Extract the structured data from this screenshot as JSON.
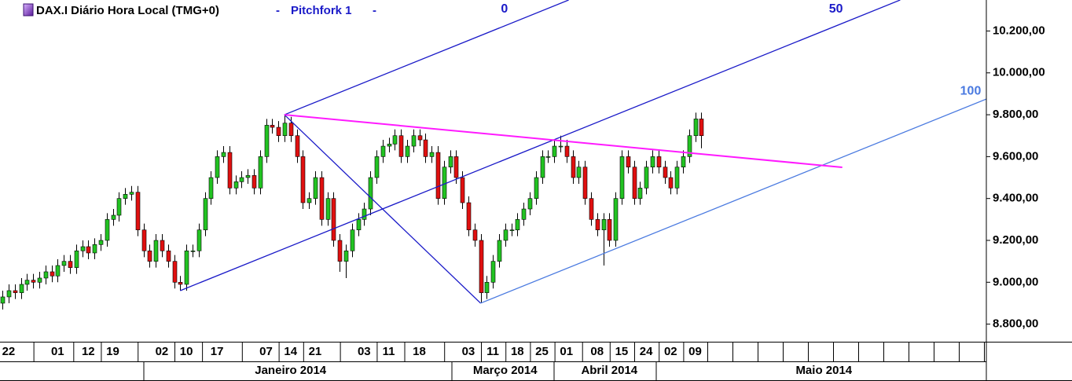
{
  "chart_data": {
    "type": "candlestick",
    "title": "DAX.I Diário Hora Local (TMG+0)",
    "separator": "-",
    "up_color": "#22c322",
    "down_color": "#e01010",
    "open": [
      8900,
      8930,
      8960,
      8950,
      8990,
      9010,
      9000,
      9020,
      9050,
      9030,
      9080,
      9100,
      9070,
      9150,
      9170,
      9140,
      9180,
      9200,
      9300,
      9320,
      9400,
      9420,
      9430,
      9250,
      9150,
      9100,
      9200,
      9150,
      9100,
      9000,
      8990,
      9150,
      9150,
      9250,
      9400,
      9500,
      9600,
      9620,
      9450,
      9480,
      9500,
      9510,
      9450,
      9600,
      9750,
      9740,
      9700,
      9760,
      9700,
      9600,
      9380,
      9400,
      9500,
      9300,
      9400,
      9200,
      9100,
      9150,
      9250,
      9300,
      9350,
      9500,
      9600,
      9650,
      9660,
      9700,
      9600,
      9650,
      9700,
      9680,
      9600,
      9620,
      9400,
      9550,
      9600,
      9500,
      9380,
      9250,
      9200,
      8950,
      9000,
      9100,
      9200,
      9250,
      9250,
      9300,
      9350,
      9400,
      9500,
      9600,
      9600,
      9650,
      9650,
      9600,
      9500,
      9550,
      9400,
      9300,
      9250,
      9300,
      9200,
      9400,
      9600,
      9550,
      9400,
      9450,
      9550,
      9600,
      9550,
      9500,
      9450,
      9550,
      9600,
      9700,
      9780
    ],
    "high": [
      8960,
      8990,
      8990,
      9020,
      9040,
      9040,
      9050,
      9080,
      9080,
      9110,
      9130,
      9130,
      9180,
      9200,
      9200,
      9210,
      9230,
      9330,
      9350,
      9430,
      9450,
      9460,
      9460,
      9280,
      9180,
      9230,
      9230,
      9180,
      9130,
      9030,
      9180,
      9180,
      9280,
      9430,
      9530,
      9630,
      9650,
      9650,
      9510,
      9530,
      9540,
      9540,
      9630,
      9780,
      9780,
      9770,
      9800,
      9790,
      9730,
      9630,
      9430,
      9530,
      9530,
      9430,
      9430,
      9230,
      9180,
      9280,
      9330,
      9380,
      9530,
      9630,
      9680,
      9690,
      9730,
      9730,
      9680,
      9730,
      9730,
      9710,
      9650,
      9650,
      9580,
      9630,
      9630,
      9530,
      9410,
      9280,
      9230,
      9030,
      9130,
      9230,
      9280,
      9280,
      9330,
      9380,
      9430,
      9530,
      9630,
      9630,
      9680,
      9700,
      9680,
      9630,
      9580,
      9580,
      9430,
      9330,
      9330,
      9330,
      9430,
      9630,
      9630,
      9580,
      9480,
      9580,
      9630,
      9630,
      9580,
      9530,
      9580,
      9630,
      9730,
      9810,
      9810
    ],
    "low": [
      8870,
      8900,
      8920,
      8920,
      8960,
      8970,
      8970,
      8990,
      9000,
      9000,
      9050,
      9040,
      9040,
      9120,
      9110,
      9110,
      9150,
      9170,
      9270,
      9290,
      9370,
      9390,
      9220,
      9120,
      9070,
      9070,
      9120,
      9070,
      8970,
      8960,
      8960,
      9120,
      9120,
      9220,
      9370,
      9470,
      9570,
      9420,
      9420,
      9450,
      9470,
      9420,
      9420,
      9570,
      9710,
      9670,
      9670,
      9670,
      9570,
      9350,
      9350,
      9370,
      9270,
      9270,
      9170,
      9050,
      9020,
      9120,
      9220,
      9270,
      9320,
      9470,
      9570,
      9620,
      9630,
      9570,
      9570,
      9620,
      9650,
      9570,
      9570,
      9370,
      9370,
      9520,
      9470,
      9350,
      9220,
      9170,
      8900,
      8920,
      8970,
      9070,
      9170,
      9220,
      9220,
      9270,
      9320,
      9370,
      9470,
      9570,
      9570,
      9620,
      9570,
      9470,
      9470,
      9370,
      9270,
      9220,
      9080,
      9170,
      9170,
      9370,
      9520,
      9370,
      9370,
      9420,
      9520,
      9520,
      9470,
      9420,
      9420,
      9520,
      9570,
      9670,
      9640
    ],
    "close": [
      8930,
      8960,
      8950,
      8990,
      9010,
      9000,
      9020,
      9050,
      9030,
      9080,
      9100,
      9070,
      9150,
      9170,
      9140,
      9180,
      9200,
      9300,
      9320,
      9400,
      9420,
      9430,
      9250,
      9150,
      9100,
      9200,
      9150,
      9100,
      9000,
      8990,
      9150,
      9150,
      9250,
      9400,
      9500,
      9600,
      9620,
      9450,
      9480,
      9500,
      9510,
      9450,
      9600,
      9750,
      9740,
      9700,
      9760,
      9700,
      9600,
      9380,
      9400,
      9500,
      9300,
      9400,
      9200,
      9100,
      9150,
      9250,
      9300,
      9350,
      9500,
      9600,
      9650,
      9660,
      9700,
      9600,
      9650,
      9700,
      9680,
      9600,
      9620,
      9400,
      9550,
      9600,
      9500,
      9380,
      9250,
      9200,
      8950,
      9000,
      9100,
      9200,
      9250,
      9250,
      9300,
      9350,
      9400,
      9500,
      9600,
      9600,
      9650,
      9650,
      9600,
      9500,
      9550,
      9400,
      9300,
      9250,
      9300,
      9200,
      9400,
      9600,
      9550,
      9400,
      9450,
      9550,
      9600,
      9550,
      9500,
      9450,
      9550,
      9600,
      9700,
      9780,
      9700
    ],
    "xlim": [
      -0.4,
      160.5
    ],
    "ylim": [
      8716,
      10348
    ],
    "yticks": [
      {
        "value": 10200,
        "label": "10.200,00"
      },
      {
        "value": 10000,
        "label": "10.000,00"
      },
      {
        "value": 9800,
        "label": "9.800,00"
      },
      {
        "value": 9600,
        "label": "9.600,00"
      },
      {
        "value": 9400,
        "label": "9.400,00"
      },
      {
        "value": 9200,
        "label": "9.200,00"
      },
      {
        "value": 9000,
        "label": "9.000,00"
      },
      {
        "value": 8800,
        "label": "8.800,00"
      }
    ],
    "xticks": [
      {
        "value": 1,
        "label": "22"
      },
      {
        "value": 9,
        "label": "01"
      },
      {
        "value": 14,
        "label": "12"
      },
      {
        "value": 18,
        "label": "19"
      },
      {
        "value": 26,
        "label": "02"
      },
      {
        "value": 30,
        "label": "10"
      },
      {
        "value": 35,
        "label": "17"
      },
      {
        "value": 43,
        "label": "07"
      },
      {
        "value": 47,
        "label": "14"
      },
      {
        "value": 51,
        "label": "21"
      },
      {
        "value": 59,
        "label": "03"
      },
      {
        "value": 63,
        "label": "11"
      },
      {
        "value": 68,
        "label": "18"
      },
      {
        "value": 76,
        "label": "03"
      },
      {
        "value": 80,
        "label": "11"
      },
      {
        "value": 84,
        "label": "18"
      },
      {
        "value": 88,
        "label": "25"
      },
      {
        "value": 92,
        "label": "01"
      },
      {
        "value": 97,
        "label": "08"
      },
      {
        "value": 101,
        "label": "15"
      },
      {
        "value": 105,
        "label": "24"
      },
      {
        "value": 109,
        "label": "02"
      },
      {
        "value": 113,
        "label": "09"
      }
    ],
    "month_ticks": [
      {
        "value": 47,
        "label": "Janeiro 2014"
      },
      {
        "value": 82,
        "label": "Março 2014"
      },
      {
        "value": 99,
        "label": "Abril 2014"
      },
      {
        "value": 134,
        "label": "Maio 2014"
      }
    ],
    "pitchfork": {
      "name": "Pitchfork 1",
      "points": [
        {
          "x": 29,
          "y": 8960
        },
        {
          "x": 46,
          "y": 9800
        },
        {
          "x": 78,
          "y": 8900
        }
      ],
      "levels": [
        "0",
        "50",
        "100"
      ],
      "colors": [
        "#1a1ac8",
        "#1a1ac8",
        "#4a7ae0"
      ]
    },
    "trendline": {
      "points": [
        {
          "x": 46,
          "y": 9800
        },
        {
          "x": 137,
          "y": 9549
        }
      ],
      "color": "#ff1aff"
    }
  }
}
